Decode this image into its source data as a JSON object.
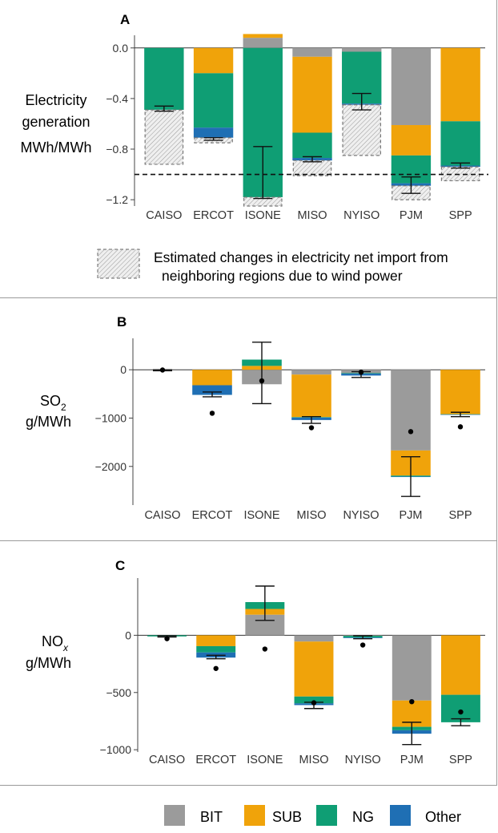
{
  "categories": [
    "CAISO",
    "ERCOT",
    "ISONE",
    "MISO",
    "NYISO",
    "PJM",
    "SPP"
  ],
  "colors": {
    "BIT": "#9b9b9b",
    "SUB": "#f0a30a",
    "NG": "#0f9e74",
    "Other": "#1f6fb4"
  },
  "legend": {
    "bit": "BIT",
    "sub": "SUB",
    "ng": "NG",
    "other": "Other"
  },
  "panelA": {
    "letter": "A",
    "ylabel_line1": "Electricity",
    "ylabel_line2": "generation",
    "ylabel_line3": "MWh/MWh",
    "import_legend_line1": "Estimated changes in electricity net import from",
    "import_legend_line2": "neighboring regions due to wind power"
  },
  "panelB": {
    "letter": "B",
    "ylabel_line1": "SO",
    "ylabel_sub": "2",
    "ylabel_line2": "g/MWh"
  },
  "panelC": {
    "letter": "C",
    "ylabel_line1": "NO",
    "ylabel_sub": "x",
    "ylabel_line2": "g/MWh"
  },
  "chart_data": [
    {
      "type": "bar",
      "title": "A",
      "ylabel": "Electricity generation MWh/MWh",
      "categories": [
        "CAISO",
        "ERCOT",
        "ISONE",
        "MISO",
        "NYISO",
        "PJM",
        "SPP"
      ],
      "ylim": [
        -1.25,
        0.1
      ],
      "yticks": [
        0.0,
        -0.4,
        -0.8,
        -1.2
      ],
      "reference_line": -1.0,
      "series": [
        {
          "name": "BIT",
          "values": [
            0,
            0,
            0.08,
            -0.07,
            -0.03,
            -0.61,
            0
          ]
        },
        {
          "name": "SUB",
          "values": [
            0,
            -0.2,
            0.03,
            -0.6,
            0,
            -0.24,
            -0.58
          ]
        },
        {
          "name": "NG",
          "values": [
            -0.49,
            -0.43,
            -1.18,
            -0.2,
            -0.41,
            -0.22,
            -0.35
          ]
        },
        {
          "name": "Other",
          "values": [
            0,
            -0.08,
            0,
            -0.02,
            -0.01,
            -0.02,
            -0.01
          ]
        }
      ],
      "net_import": [
        {
          "from": -0.49,
          "to": -0.92
        },
        {
          "from": -0.71,
          "to": -0.75
        },
        {
          "from": -1.18,
          "to": -1.25
        },
        {
          "from": -0.89,
          "to": -1.01
        },
        {
          "from": -0.45,
          "to": -0.85
        },
        {
          "from": -1.09,
          "to": -1.2
        },
        {
          "from": -0.94,
          "to": -1.05
        }
      ],
      "error_bars": [
        {
          "center": -0.48,
          "low": -0.5,
          "high": -0.46
        },
        {
          "center": -0.72,
          "low": -0.73,
          "high": -0.71
        },
        {
          "center": -0.98,
          "low": -1.19,
          "high": -0.78
        },
        {
          "center": -0.88,
          "low": -0.9,
          "high": -0.86
        },
        {
          "center": -0.42,
          "low": -0.49,
          "high": -0.36
        },
        {
          "center": -1.08,
          "low": -1.15,
          "high": -1.02
        },
        {
          "center": -0.93,
          "low": -0.95,
          "high": -0.91
        }
      ]
    },
    {
      "type": "bar",
      "title": "B",
      "ylabel": "SO2 g/MWh",
      "categories": [
        "CAISO",
        "ERCOT",
        "ISONE",
        "MISO",
        "NYISO",
        "PJM",
        "SPP"
      ],
      "ylim": [
        -2800,
        650
      ],
      "yticks": [
        0,
        -1000,
        -2000
      ],
      "series": [
        {
          "name": "BIT",
          "values": [
            0,
            0,
            -300,
            -100,
            -70,
            -1670,
            0
          ]
        },
        {
          "name": "SUB",
          "values": [
            0,
            -320,
            80,
            -880,
            0,
            -520,
            -920
          ]
        },
        {
          "name": "NG",
          "values": [
            0,
            0,
            130,
            -10,
            -10,
            -20,
            -5
          ]
        },
        {
          "name": "Other",
          "values": [
            0,
            -200,
            0,
            -50,
            -40,
            -10,
            -5
          ]
        }
      ],
      "error_bars": [
        {
          "center": -10,
          "low": -20,
          "high": 0
        },
        {
          "center": -510,
          "low": -560,
          "high": -460
        },
        {
          "center": -70,
          "low": -700,
          "high": 570
        },
        {
          "center": -1040,
          "low": -1110,
          "high": -970
        },
        {
          "center": -100,
          "low": -160,
          "high": -40
        },
        {
          "center": -2200,
          "low": -2620,
          "high": -1800
        },
        {
          "center": -920,
          "low": -970,
          "high": -880
        }
      ],
      "points": [
        -5,
        -900,
        -230,
        -1200,
        -50,
        -1280,
        -1180
      ]
    },
    {
      "type": "bar",
      "title": "C",
      "ylabel": "NOx g/MWh",
      "categories": [
        "CAISO",
        "ERCOT",
        "ISONE",
        "MISO",
        "NYISO",
        "PJM",
        "SPP"
      ],
      "ylim": [
        -1020,
        500
      ],
      "yticks": [
        0,
        -500,
        -1000
      ],
      "series": [
        {
          "name": "BIT",
          "values": [
            0,
            0,
            180,
            -55,
            -5,
            -570,
            0
          ]
        },
        {
          "name": "SUB",
          "values": [
            0,
            -95,
            50,
            -480,
            0,
            -230,
            -520
          ]
        },
        {
          "name": "NG",
          "values": [
            -10,
            -55,
            60,
            -60,
            -15,
            -30,
            -240
          ]
        },
        {
          "name": "Other",
          "values": [
            0,
            -45,
            0,
            -15,
            -5,
            -30,
            0
          ]
        }
      ],
      "error_bars": [
        {
          "center": -10,
          "low": -15,
          "high": -5
        },
        {
          "center": -190,
          "low": -205,
          "high": -175
        },
        {
          "center": 290,
          "low": 130,
          "high": 430
        },
        {
          "center": -610,
          "low": -640,
          "high": -585
        },
        {
          "center": -20,
          "low": -30,
          "high": -5
        },
        {
          "center": -850,
          "low": -955,
          "high": -760
        },
        {
          "center": -760,
          "low": -790,
          "high": -730
        }
      ],
      "points": [
        -30,
        -290,
        -120,
        -590,
        -85,
        -580,
        -670
      ]
    }
  ]
}
